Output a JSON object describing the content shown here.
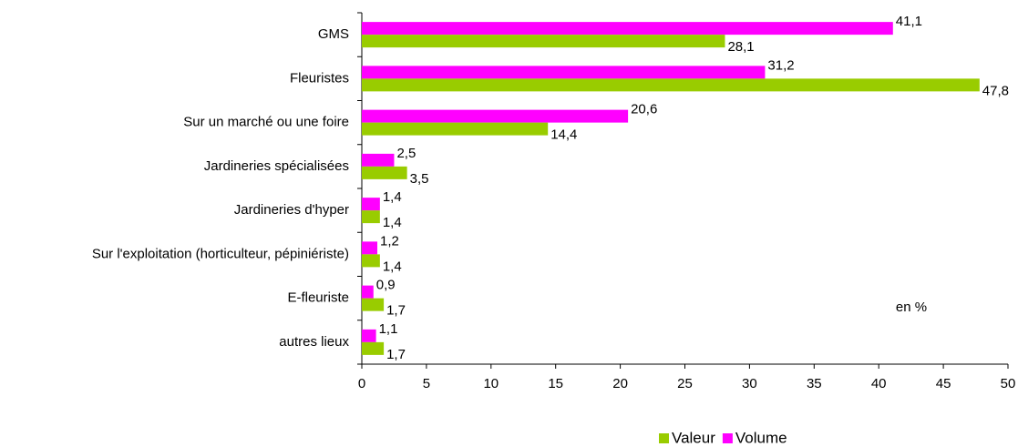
{
  "chart_data": {
    "type": "bar",
    "orientation": "horizontal",
    "categories": [
      "GMS",
      "Fleuristes",
      "Sur un marché ou une foire",
      "Jardineries spécialisées",
      "Jardineries d'hyper",
      "Sur l'exploitation (horticulteur, pépiniériste)",
      "E-fleuriste",
      "autres lieux"
    ],
    "series": [
      {
        "name": "Valeur",
        "color": "#99cc00",
        "values": [
          28.1,
          47.8,
          14.4,
          3.5,
          1.4,
          1.4,
          1.7,
          1.7
        ],
        "value_labels": [
          "28,1",
          "47,8",
          "14,4",
          "3,5",
          "1,4",
          "1,4",
          "1,7",
          "1,7"
        ]
      },
      {
        "name": "Volume",
        "color": "#ff00ff",
        "values": [
          41.1,
          31.2,
          20.6,
          2.5,
          1.4,
          1.2,
          0.9,
          1.1
        ],
        "value_labels": [
          "41,1",
          "31,2",
          "20,6",
          "2,5",
          "1,4",
          "1,2",
          "0,9",
          "1,1"
        ]
      }
    ],
    "xlim": [
      0,
      50
    ],
    "xticks": [
      0,
      5,
      10,
      15,
      20,
      25,
      30,
      35,
      40,
      45,
      50
    ],
    "annotation": "en %",
    "legend": "bottom",
    "grid": false
  }
}
